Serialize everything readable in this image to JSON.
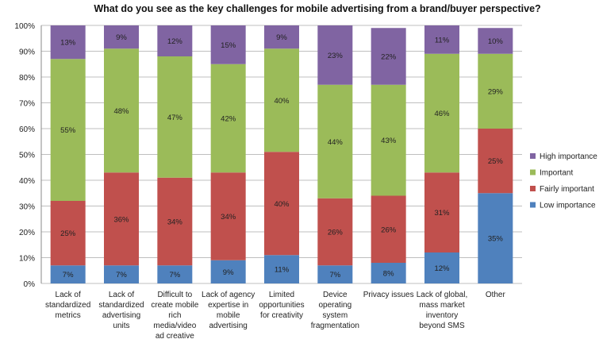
{
  "chart_data": {
    "type": "bar",
    "stacked": true,
    "title": "What do you see as the key challenges for mobile advertising from a brand/buyer perspective?",
    "xlabel": "",
    "ylabel": "",
    "ylim": [
      0,
      100
    ],
    "yticks": [
      "0%",
      "10%",
      "20%",
      "30%",
      "40%",
      "50%",
      "60%",
      "70%",
      "80%",
      "90%",
      "100%"
    ],
    "grid": true,
    "legend_position": "right",
    "categories": [
      [
        "Lack of",
        "standardized",
        "metrics"
      ],
      [
        "Lack of",
        "standardized",
        "advertising",
        "units"
      ],
      [
        "Difficult to",
        "create mobile",
        "rich",
        "media/video",
        "ad creative"
      ],
      [
        "Lack of agency",
        "expertise in",
        "mobile",
        "advertising"
      ],
      [
        "Limited",
        "opportunities",
        "for creativity"
      ],
      [
        "Device",
        "operating",
        "system",
        "fragmentation"
      ],
      [
        "Privacy issues"
      ],
      [
        "Lack of global,",
        "mass market",
        "inventory",
        "beyond SMS"
      ],
      [
        "Other"
      ]
    ],
    "series": [
      {
        "name": "Low importance",
        "color": "#4f81bd",
        "values": [
          7,
          7,
          7,
          9,
          11,
          7,
          8,
          12,
          35
        ]
      },
      {
        "name": "Fairly important",
        "color": "#c0504d",
        "values": [
          25,
          36,
          34,
          34,
          40,
          26,
          26,
          31,
          25
        ]
      },
      {
        "name": "Important",
        "color": "#9bbb59",
        "values": [
          55,
          48,
          47,
          42,
          40,
          44,
          43,
          46,
          29
        ]
      },
      {
        "name": "High importance",
        "color": "#8064a2",
        "values": [
          13,
          9,
          12,
          15,
          9,
          23,
          22,
          11,
          10
        ]
      }
    ],
    "legend_order": [
      "High importance",
      "Important",
      "Fairly important",
      "Low importance"
    ]
  }
}
